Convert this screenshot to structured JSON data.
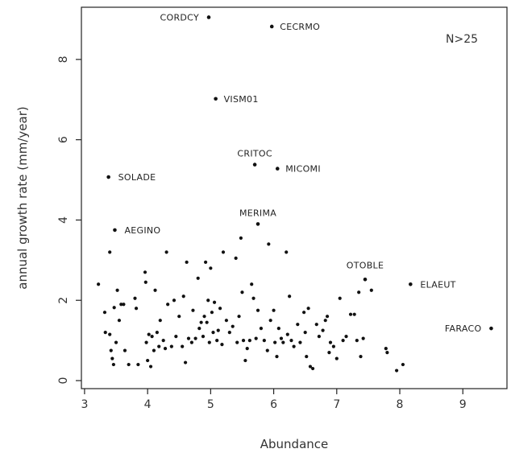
{
  "chart_data": {
    "type": "scatter",
    "title": "",
    "xlabel": "Abundance",
    "ylabel": "annual growth rate (mm/year)",
    "xlim": [
      2.95,
      9.7
    ],
    "ylim": [
      -0.2,
      9.3
    ],
    "xticks": [
      3,
      4,
      5,
      6,
      7,
      8,
      9
    ],
    "yticks": [
      0,
      2,
      4,
      6,
      8
    ],
    "grid": false,
    "annotation": "N>25",
    "labeled_points": [
      {
        "x": 4.97,
        "y": 9.05,
        "label": "CORDCY"
      },
      {
        "x": 5.97,
        "y": 8.82,
        "label": "CECRMO"
      },
      {
        "x": 5.08,
        "y": 7.02,
        "label": "VISM01"
      },
      {
        "x": 5.7,
        "y": 5.38,
        "label": "CRITOC"
      },
      {
        "x": 6.06,
        "y": 5.28,
        "label": "MICOMI"
      },
      {
        "x": 3.38,
        "y": 5.07,
        "label": "SOLADE"
      },
      {
        "x": 5.75,
        "y": 3.9,
        "label": "MERIMA"
      },
      {
        "x": 3.48,
        "y": 3.75,
        "label": "AEGINO"
      },
      {
        "x": 7.45,
        "y": 2.52,
        "label": "OTOBLE"
      },
      {
        "x": 8.17,
        "y": 2.4,
        "label": "ELAEUT"
      },
      {
        "x": 9.45,
        "y": 1.3,
        "label": "FARACO"
      }
    ],
    "points": [
      {
        "x": 3.22,
        "y": 2.4
      },
      {
        "x": 3.32,
        "y": 1.7
      },
      {
        "x": 3.33,
        "y": 1.2
      },
      {
        "x": 3.4,
        "y": 3.2
      },
      {
        "x": 3.4,
        "y": 1.15
      },
      {
        "x": 3.42,
        "y": 0.75
      },
      {
        "x": 3.44,
        "y": 0.55
      },
      {
        "x": 3.46,
        "y": 0.4
      },
      {
        "x": 3.47,
        "y": 1.82
      },
      {
        "x": 3.5,
        "y": 0.95
      },
      {
        "x": 3.52,
        "y": 2.25
      },
      {
        "x": 3.55,
        "y": 1.5
      },
      {
        "x": 3.58,
        "y": 1.9
      },
      {
        "x": 3.62,
        "y": 1.9
      },
      {
        "x": 3.64,
        "y": 0.75
      },
      {
        "x": 3.7,
        "y": 0.4
      },
      {
        "x": 3.8,
        "y": 2.05
      },
      {
        "x": 3.82,
        "y": 1.8
      },
      {
        "x": 3.85,
        "y": 0.4
      },
      {
        "x": 3.96,
        "y": 2.7
      },
      {
        "x": 3.97,
        "y": 2.45
      },
      {
        "x": 3.98,
        "y": 0.95
      },
      {
        "x": 4.0,
        "y": 0.5
      },
      {
        "x": 4.02,
        "y": 1.15
      },
      {
        "x": 4.05,
        "y": 0.35
      },
      {
        "x": 4.07,
        "y": 1.1
      },
      {
        "x": 4.1,
        "y": 0.75
      },
      {
        "x": 4.12,
        "y": 2.25
      },
      {
        "x": 4.15,
        "y": 1.2
      },
      {
        "x": 4.18,
        "y": 0.85
      },
      {
        "x": 4.2,
        "y": 1.5
      },
      {
        "x": 4.25,
        "y": 1.0
      },
      {
        "x": 4.28,
        "y": 0.8
      },
      {
        "x": 4.3,
        "y": 3.2
      },
      {
        "x": 4.32,
        "y": 1.9
      },
      {
        "x": 4.38,
        "y": 0.85
      },
      {
        "x": 4.42,
        "y": 2.0
      },
      {
        "x": 4.45,
        "y": 1.1
      },
      {
        "x": 4.5,
        "y": 1.6
      },
      {
        "x": 4.55,
        "y": 0.85
      },
      {
        "x": 4.57,
        "y": 2.1
      },
      {
        "x": 4.6,
        "y": 0.45
      },
      {
        "x": 4.62,
        "y": 2.95
      },
      {
        "x": 4.65,
        "y": 1.05
      },
      {
        "x": 4.7,
        "y": 0.95
      },
      {
        "x": 4.72,
        "y": 1.75
      },
      {
        "x": 4.76,
        "y": 1.05
      },
      {
        "x": 4.8,
        "y": 2.55
      },
      {
        "x": 4.82,
        "y": 1.3
      },
      {
        "x": 4.85,
        "y": 1.45
      },
      {
        "x": 4.88,
        "y": 1.1
      },
      {
        "x": 4.9,
        "y": 1.6
      },
      {
        "x": 4.92,
        "y": 2.95
      },
      {
        "x": 4.94,
        "y": 1.45
      },
      {
        "x": 4.96,
        "y": 2.0
      },
      {
        "x": 4.98,
        "y": 0.95
      },
      {
        "x": 5.0,
        "y": 2.8
      },
      {
        "x": 5.02,
        "y": 1.7
      },
      {
        "x": 5.04,
        "y": 1.2
      },
      {
        "x": 5.06,
        "y": 1.95
      },
      {
        "x": 5.1,
        "y": 1.0
      },
      {
        "x": 5.12,
        "y": 1.25
      },
      {
        "x": 5.15,
        "y": 1.8
      },
      {
        "x": 5.18,
        "y": 0.9
      },
      {
        "x": 5.2,
        "y": 3.2
      },
      {
        "x": 5.25,
        "y": 1.5
      },
      {
        "x": 5.3,
        "y": 1.2
      },
      {
        "x": 5.35,
        "y": 1.35
      },
      {
        "x": 5.4,
        "y": 3.05
      },
      {
        "x": 5.42,
        "y": 0.95
      },
      {
        "x": 5.45,
        "y": 1.6
      },
      {
        "x": 5.48,
        "y": 3.55
      },
      {
        "x": 5.5,
        "y": 2.2
      },
      {
        "x": 5.52,
        "y": 1.0
      },
      {
        "x": 5.55,
        "y": 0.5
      },
      {
        "x": 5.58,
        "y": 0.8
      },
      {
        "x": 5.62,
        "y": 1.0
      },
      {
        "x": 5.65,
        "y": 2.4
      },
      {
        "x": 5.68,
        "y": 2.05
      },
      {
        "x": 5.72,
        "y": 1.05
      },
      {
        "x": 5.75,
        "y": 1.75
      },
      {
        "x": 5.8,
        "y": 1.3
      },
      {
        "x": 5.85,
        "y": 1.0
      },
      {
        "x": 5.9,
        "y": 0.75
      },
      {
        "x": 5.92,
        "y": 3.4
      },
      {
        "x": 5.95,
        "y": 1.5
      },
      {
        "x": 6.0,
        "y": 1.75
      },
      {
        "x": 6.02,
        "y": 0.95
      },
      {
        "x": 6.05,
        "y": 0.6
      },
      {
        "x": 6.08,
        "y": 1.3
      },
      {
        "x": 6.12,
        "y": 1.05
      },
      {
        "x": 6.15,
        "y": 0.95
      },
      {
        "x": 6.2,
        "y": 3.2
      },
      {
        "x": 6.22,
        "y": 1.15
      },
      {
        "x": 6.25,
        "y": 2.1
      },
      {
        "x": 6.28,
        "y": 1.0
      },
      {
        "x": 6.32,
        "y": 0.85
      },
      {
        "x": 6.38,
        "y": 1.4
      },
      {
        "x": 6.42,
        "y": 0.95
      },
      {
        "x": 6.48,
        "y": 1.7
      },
      {
        "x": 6.5,
        "y": 1.2
      },
      {
        "x": 6.52,
        "y": 0.6
      },
      {
        "x": 6.55,
        "y": 1.8
      },
      {
        "x": 6.58,
        "y": 0.35
      },
      {
        "x": 6.62,
        "y": 0.3
      },
      {
        "x": 6.68,
        "y": 1.4
      },
      {
        "x": 6.72,
        "y": 1.1
      },
      {
        "x": 6.78,
        "y": 1.25
      },
      {
        "x": 6.82,
        "y": 1.5
      },
      {
        "x": 6.85,
        "y": 1.6
      },
      {
        "x": 6.88,
        "y": 0.7
      },
      {
        "x": 6.9,
        "y": 0.95
      },
      {
        "x": 6.95,
        "y": 0.85
      },
      {
        "x": 7.0,
        "y": 0.55
      },
      {
        "x": 7.05,
        "y": 2.05
      },
      {
        "x": 7.1,
        "y": 1.0
      },
      {
        "x": 7.15,
        "y": 1.1
      },
      {
        "x": 7.22,
        "y": 1.65
      },
      {
        "x": 7.28,
        "y": 1.65
      },
      {
        "x": 7.32,
        "y": 1.0
      },
      {
        "x": 7.35,
        "y": 2.2
      },
      {
        "x": 7.38,
        "y": 0.6
      },
      {
        "x": 7.42,
        "y": 1.05
      },
      {
        "x": 7.55,
        "y": 2.25
      },
      {
        "x": 7.78,
        "y": 0.8
      },
      {
        "x": 7.8,
        "y": 0.7
      },
      {
        "x": 7.95,
        "y": 0.25
      },
      {
        "x": 8.05,
        "y": 0.4
      }
    ]
  }
}
